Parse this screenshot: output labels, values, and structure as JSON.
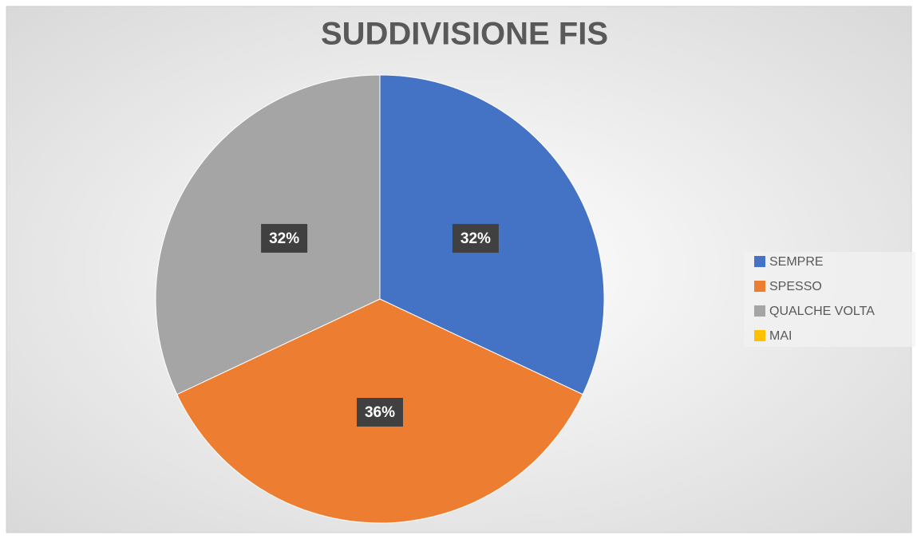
{
  "chart_data": {
    "type": "pie",
    "title": "SUDDIVISIONE FIS",
    "categories": [
      "SEMPRE",
      "SPESSO",
      "QUALCHE VOLTA",
      "MAI"
    ],
    "values": [
      32,
      36,
      32,
      0
    ],
    "value_labels": [
      "32%",
      "36%",
      "32%",
      null
    ],
    "colors": [
      "#4472c4",
      "#ed7d31",
      "#a5a5a5",
      "#ffc000"
    ],
    "legend": "right"
  }
}
